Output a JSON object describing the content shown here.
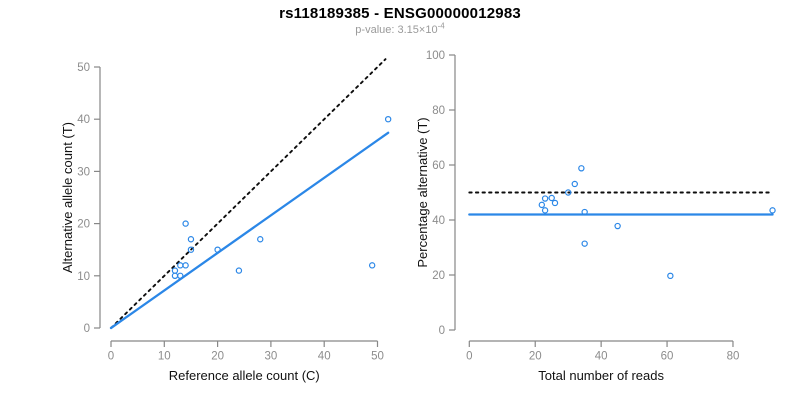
{
  "header": {
    "title": "rs118189385 - ENSG00000012983",
    "subtitle_prefix": "p-value: 3.15×10",
    "subtitle_exponent": "-4"
  },
  "colors": {
    "point_blue": "#2b87e7",
    "line_blue": "#2b87e7",
    "dotted_black": "#0d0d0d",
    "axis_gray": "#878787",
    "tick_label_gray": "#8c8c8c",
    "axis_title_black": "#111111",
    "subtitle_gray": "#9a9a9a",
    "background": "#ffffff"
  },
  "chart_data": [
    {
      "id": "allele-counts",
      "type": "scatter",
      "xlabel": "Reference allele count (C)",
      "ylabel": "Alternative allele count (T)",
      "xticks": [
        0,
        10,
        20,
        30,
        40,
        50
      ],
      "yticks": [
        0,
        10,
        20,
        30,
        40,
        50
      ],
      "xlim": [
        0,
        52
      ],
      "ylim": [
        0,
        52
      ],
      "grid": false,
      "legend": "none",
      "points": [
        [
          12,
          10
        ],
        [
          12,
          11
        ],
        [
          13,
          10
        ],
        [
          13,
          12
        ],
        [
          14,
          12
        ],
        [
          14,
          20
        ],
        [
          15,
          15
        ],
        [
          15,
          17
        ],
        [
          20,
          15
        ],
        [
          24,
          11
        ],
        [
          28,
          17
        ],
        [
          49,
          12
        ],
        [
          52,
          40
        ]
      ],
      "lines": [
        {
          "name": "identity-line",
          "style": "dotted",
          "color": "#0d0d0d",
          "x1": 0,
          "y1": 0,
          "x2": 51.5,
          "y2": 51.5
        },
        {
          "name": "regression-line",
          "style": "solid",
          "color": "#2b87e7",
          "x1": 0,
          "y1": 0,
          "x2": 52,
          "y2": 37.4
        }
      ]
    },
    {
      "id": "percentage-vs-reads",
      "type": "scatter",
      "xlabel": "Total number of reads",
      "ylabel": "Percentage alternative (T)",
      "xticks": [
        0,
        20,
        40,
        60,
        80
      ],
      "yticks": [
        0,
        20,
        40,
        60,
        80,
        100
      ],
      "xlim": [
        0,
        92
      ],
      "ylim": [
        0,
        100
      ],
      "grid": false,
      "legend": "none",
      "points": [
        [
          22,
          45.5
        ],
        [
          23,
          43.5
        ],
        [
          23,
          47.8
        ],
        [
          25,
          48.0
        ],
        [
          26,
          46.2
        ],
        [
          30,
          50.0
        ],
        [
          32,
          53.1
        ],
        [
          34,
          58.8
        ],
        [
          35,
          31.4
        ],
        [
          35,
          42.9
        ],
        [
          45,
          37.8
        ],
        [
          61,
          19.7
        ],
        [
          92,
          43.5
        ]
      ],
      "lines": [
        {
          "name": "expected-50pct-line",
          "style": "dotted",
          "color": "#0d0d0d",
          "x1": 0,
          "y1": 50,
          "x2": 92,
          "y2": 50
        },
        {
          "name": "mean-ratio-line",
          "style": "solid",
          "color": "#2b87e7",
          "x1": 0,
          "y1": 42,
          "x2": 92,
          "y2": 42
        }
      ]
    }
  ]
}
